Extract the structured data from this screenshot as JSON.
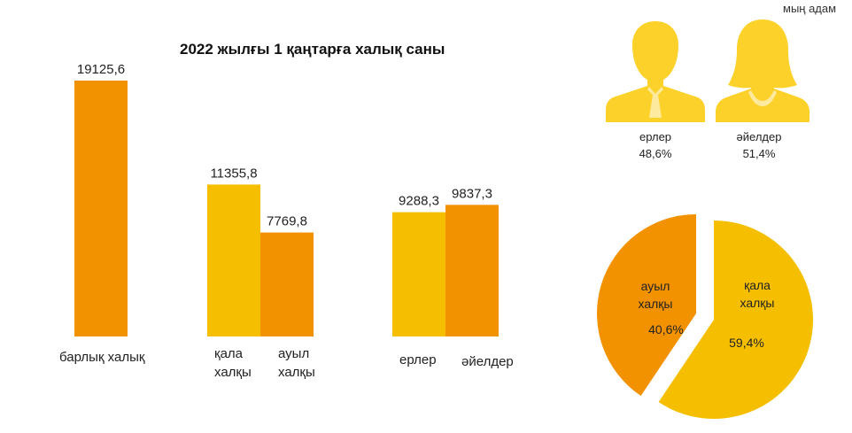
{
  "unit_label": "мың адам",
  "colors": {
    "orange": "#f39200",
    "yellow": "#f5bf00",
    "icon": "#fcd12a"
  },
  "icons": [
    {
      "name": "man-icon",
      "label": "ерлер",
      "percent": "48,6%"
    },
    {
      "name": "woman-icon",
      "label": "әйелдер",
      "percent": "51,4%"
    }
  ],
  "chart_data": [
    {
      "type": "bar",
      "title": "2022 жылғы 1 қаңтарға халық саны",
      "groups": [
        {
          "labels": [
            "барлық халық"
          ],
          "bars": [
            {
              "value": 19125.6,
              "label": "19125,6",
              "color": "orange"
            }
          ]
        },
        {
          "labels": [
            "қала\nхалқы",
            "ауыл\nхалқы"
          ],
          "bars": [
            {
              "value": 11355.8,
              "label": "11355,8",
              "color": "yellow"
            },
            {
              "value": 7769.8,
              "label": "7769,8",
              "color": "orange"
            }
          ]
        },
        {
          "labels": [
            "ерлер",
            "әйелдер"
          ],
          "bars": [
            {
              "value": 9288.3,
              "label": "9288,3",
              "color": "yellow"
            },
            {
              "value": 9837.3,
              "label": "9837,3",
              "color": "orange"
            }
          ]
        }
      ]
    },
    {
      "type": "pie",
      "slices": [
        {
          "label": "қала\nхалқы",
          "percent": 59.4,
          "percent_label": "59,4%",
          "color": "yellow"
        },
        {
          "label": "ауыл\nхалқы",
          "percent": 40.6,
          "percent_label": "40,6%",
          "color": "orange"
        }
      ]
    }
  ]
}
